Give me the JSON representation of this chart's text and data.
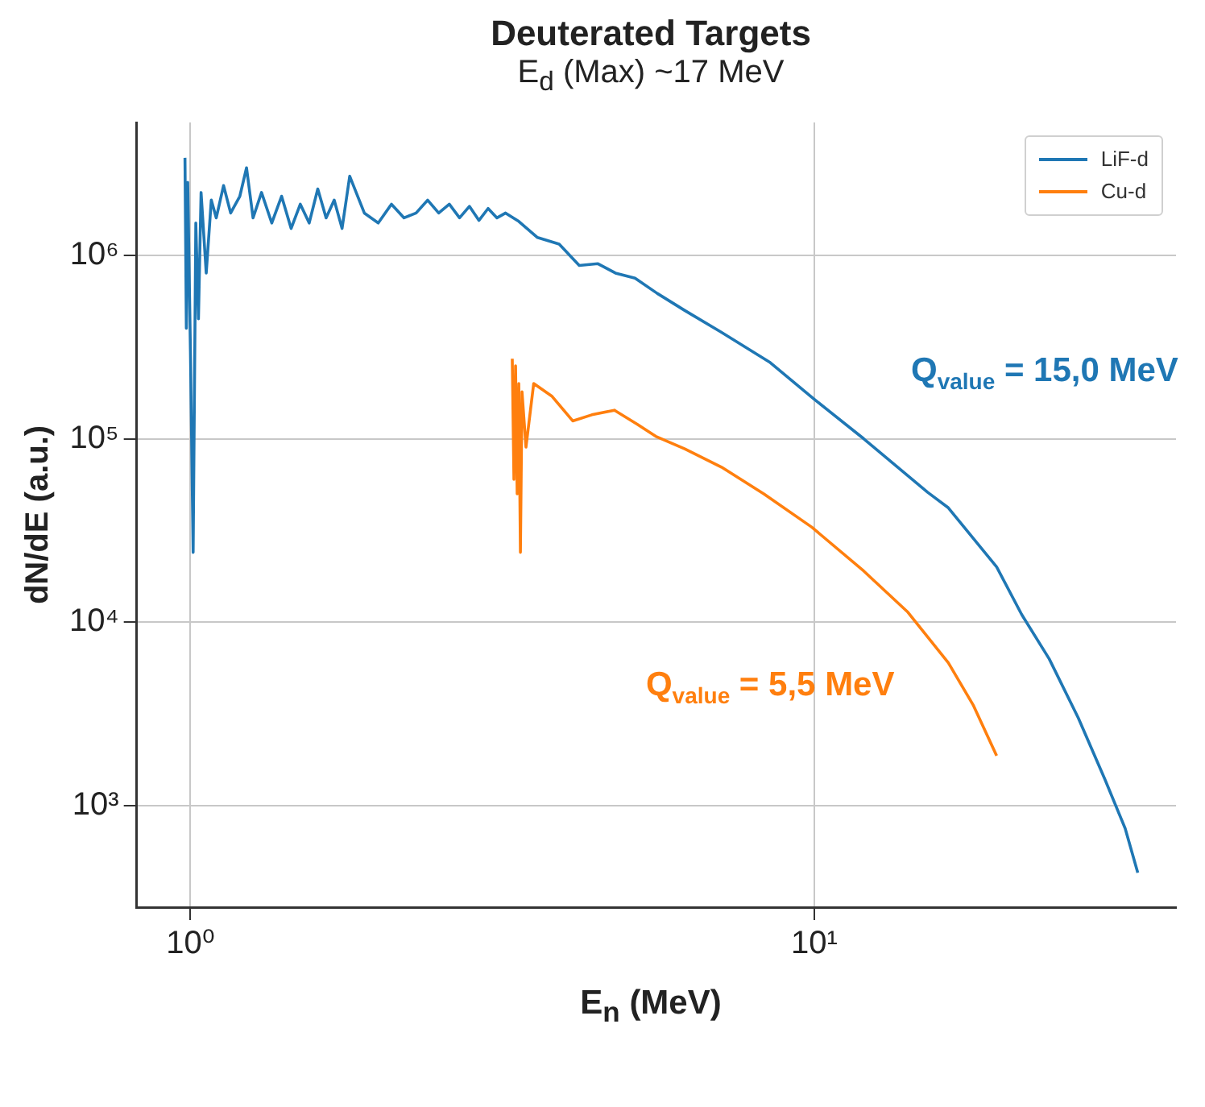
{
  "chart_data": {
    "type": "line",
    "title": "Deuterated Targets",
    "subtitle": "E$_{d}$ (Max) ~17 MeV",
    "xlabel": "E$_{n}$ (MeV)",
    "ylabel": "dN/dE (a.u.)",
    "log": "xy",
    "grid": true,
    "legend": "top right",
    "marker": "none",
    "line_style": "solid",
    "xlim": [
      0.82,
      38
    ],
    "xticks": [
      {
        "value": 1,
        "label": "10⁰"
      },
      {
        "value": 10,
        "label": "10¹"
      }
    ],
    "ylim": [
      279,
      5300000
    ],
    "yticks": [
      {
        "value": 1000,
        "label": "10³"
      },
      {
        "value": 10000,
        "label": "10⁴"
      },
      {
        "value": 100000,
        "label": "10⁵"
      },
      {
        "value": 1000000,
        "label": "10⁶"
      }
    ],
    "series": [
      {
        "name": "LiF-d",
        "color": "#1f77b4",
        "x": [
          0.98,
          0.985,
          0.99,
          1.0,
          1.01,
          1.02,
          1.03,
          1.04,
          1.06,
          1.08,
          1.1,
          1.13,
          1.16,
          1.2,
          1.23,
          1.26,
          1.3,
          1.35,
          1.4,
          1.45,
          1.5,
          1.55,
          1.6,
          1.65,
          1.7,
          1.75,
          1.8,
          1.9,
          2.0,
          2.1,
          2.2,
          2.3,
          2.4,
          2.5,
          2.6,
          2.7,
          2.8,
          2.9,
          3.0,
          3.1,
          3.2,
          3.36,
          3.6,
          3.9,
          4.2,
          4.5,
          4.8,
          5.16,
          5.6,
          6.2,
          7.1,
          8.5,
          10,
          12,
          15.2,
          16.4,
          19.6,
          21.5,
          23.8,
          26.5,
          29.2,
          31.5,
          33
        ],
        "values": [
          3400000,
          400000,
          2500000,
          300000,
          24000,
          1500000,
          450000,
          2200000,
          800000,
          2000000,
          1600000,
          2400000,
          1700000,
          2100000,
          3000000,
          1600000,
          2200000,
          1500000,
          2100000,
          1400000,
          1900000,
          1500000,
          2300000,
          1600000,
          2000000,
          1400000,
          2700000,
          1700000,
          1500000,
          1900000,
          1600000,
          1700000,
          2000000,
          1700000,
          1900000,
          1600000,
          1850000,
          1550000,
          1800000,
          1600000,
          1700000,
          1530000,
          1250000,
          1150000,
          880000,
          900000,
          800000,
          750000,
          620000,
          500000,
          380000,
          260000,
          164000,
          100000,
          51000,
          42000,
          20000,
          11000,
          6300,
          3000,
          1400,
          750,
          430
        ]
      },
      {
        "name": "Cu-d",
        "color": "#ff7f0e",
        "x": [
          3.28,
          3.3,
          3.32,
          3.34,
          3.36,
          3.38,
          3.4,
          3.45,
          3.55,
          3.8,
          4.1,
          4.4,
          4.78,
          5.2,
          5.57,
          6.2,
          7.1,
          8.3,
          9.9,
          12,
          14.1,
          16.4,
          18,
          19.6
        ],
        "values": [
          273000,
          60000,
          250000,
          50000,
          200000,
          24000,
          180000,
          90000,
          200000,
          170000,
          125000,
          135000,
          143000,
          120000,
          103000,
          88000,
          70000,
          50000,
          33000,
          19000,
          11400,
          6000,
          3500,
          1870
        ]
      }
    ],
    "annotations": [
      "Q$_{value}$ = 15,0 MeV",
      "Q$_{value}$ = 5,5 MeV"
    ]
  }
}
